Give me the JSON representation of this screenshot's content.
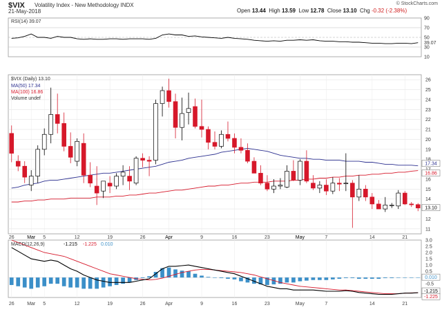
{
  "header": {
    "symbol": "$VIX",
    "name": "Volatility Index - New Methodology",
    "exchange": "INDX",
    "date": "21-May-2018",
    "brand": "© StockCharts.com",
    "open_label": "Open",
    "open": "13.44",
    "high_label": "High",
    "high": "13.59",
    "low_label": "Low",
    "low": "12.78",
    "close_label": "Close",
    "close": "13.10",
    "chg_label": "Chg",
    "chg": "-0.32 (-2.38%)"
  },
  "colors": {
    "up": "#ffffff",
    "down": "#d6182a",
    "ma50": "#2b2f8f",
    "ma100": "#d6182a",
    "macd": "#000000",
    "signal": "#d6182a",
    "hist": "#3b8fc8"
  },
  "chart_data": [
    {
      "type": "line",
      "panel": "RSI",
      "legend": "RSI(14) 39.07",
      "ylim": [
        10,
        90
      ],
      "levels": [
        70,
        50,
        30
      ],
      "ticks": [
        90,
        70,
        50,
        39.07,
        30,
        10
      ],
      "values": [
        48,
        49,
        52,
        57,
        50,
        50,
        48,
        52,
        50,
        50,
        47,
        46,
        47,
        46,
        46,
        47,
        47,
        46,
        47,
        47,
        47,
        46,
        48,
        55,
        57,
        55,
        55,
        52,
        53,
        51,
        50,
        49,
        48,
        50,
        48,
        47,
        46,
        44,
        43,
        42,
        43,
        42,
        44,
        44,
        45,
        44,
        45,
        43,
        42,
        42,
        41,
        41,
        40,
        40,
        39,
        38,
        38,
        37,
        37,
        38,
        38,
        37,
        39
      ]
    },
    {
      "type": "candlestick",
      "panel": "price",
      "legend": [
        "$VIX (Daily) 13.10",
        "MA(50) 17.34",
        "MA(100) 16.86",
        "Volume undef"
      ],
      "ylim": [
        10.5,
        26.5
      ],
      "yticks": [
        26,
        25,
        24,
        23,
        22,
        21,
        20,
        19,
        18,
        17,
        16,
        15,
        14,
        13,
        12,
        11
      ],
      "last_labels": [
        "17.34",
        "16.86",
        "13.10"
      ],
      "x_labels": [
        "26",
        "Mar",
        "5",
        "12",
        "19",
        "26",
        "Apr",
        "9",
        "16",
        "23",
        "May",
        "7",
        "14",
        "21"
      ],
      "candles": [
        [
          20.6,
          21.4,
          17.7,
          18.6
        ],
        [
          17.8,
          18.4,
          16.8,
          17.3
        ],
        [
          17.3,
          17.8,
          15.6,
          16.2
        ],
        [
          15.4,
          16.9,
          14.8,
          16.3
        ],
        [
          16.3,
          19.4,
          15.6,
          19.0
        ],
        [
          19.0,
          21.1,
          18.4,
          20.5
        ],
        [
          20.5,
          25.2,
          19.6,
          22.5
        ],
        [
          22.5,
          24.6,
          20.6,
          21.6
        ],
        [
          21.6,
          22.7,
          18.8,
          19.3
        ],
        [
          19.3,
          20.7,
          17.6,
          18.2
        ],
        [
          17.8,
          20.1,
          17.3,
          19.8
        ],
        [
          19.6,
          20.6,
          15.6,
          16.4
        ],
        [
          16.4,
          17.7,
          15.2,
          15.6
        ],
        [
          15.3,
          17.3,
          13.4,
          14.6
        ],
        [
          14.8,
          15.8,
          14.1,
          15.8
        ],
        [
          15.6,
          16.3,
          14.6,
          15.3
        ],
        [
          15.3,
          16.6,
          15.0,
          16.3
        ],
        [
          16.3,
          17.4,
          15.4,
          16.7
        ],
        [
          16.3,
          17.3,
          14.9,
          15.8
        ],
        [
          15.6,
          18.3,
          15.4,
          18.1
        ],
        [
          18.1,
          18.6,
          17.2,
          17.9
        ],
        [
          17.9,
          18.3,
          16.3,
          17.8
        ],
        [
          17.9,
          24.0,
          17.5,
          23.6
        ],
        [
          23.6,
          25.3,
          22.3,
          24.9
        ],
        [
          24.9,
          26.1,
          23.2,
          23.8
        ],
        [
          23.8,
          24.6,
          20.1,
          21.2
        ],
        [
          21.2,
          24.2,
          19.9,
          22.6
        ],
        [
          22.7,
          24.7,
          21.5,
          23.1
        ],
        [
          23.3,
          24.1,
          21.1,
          21.3
        ],
        [
          21.3,
          24.0,
          20.2,
          21.0
        ],
        [
          21.0,
          21.3,
          19.0,
          19.7
        ],
        [
          19.7,
          20.8,
          19.0,
          19.3
        ],
        [
          19.3,
          20.9,
          19.1,
          20.5
        ],
        [
          20.5,
          21.8,
          19.8,
          20.1
        ],
        [
          20.1,
          20.6,
          18.6,
          19.2
        ],
        [
          19.2,
          20.1,
          18.6,
          18.9
        ],
        [
          18.9,
          19.6,
          17.6,
          17.8
        ],
        [
          17.8,
          18.2,
          16.6,
          16.6
        ],
        [
          16.6,
          17.4,
          15.4,
          15.6
        ],
        [
          15.6,
          16.4,
          14.8,
          15.0
        ],
        [
          15.0,
          16.0,
          14.6,
          15.3
        ],
        [
          15.3,
          16.1,
          15.0,
          15.4
        ],
        [
          15.2,
          17.4,
          15.1,
          16.8
        ],
        [
          16.8,
          17.9,
          15.8,
          15.9
        ],
        [
          15.9,
          18.0,
          15.4,
          17.8
        ],
        [
          17.8,
          18.9,
          15.6,
          15.8
        ],
        [
          15.6,
          16.4,
          14.9,
          15.1
        ],
        [
          15.1,
          15.8,
          14.6,
          15.4
        ],
        [
          15.4,
          16.0,
          14.4,
          14.8
        ],
        [
          14.8,
          16.2,
          14.5,
          15.6
        ],
        [
          15.6,
          16.1,
          14.8,
          15.5
        ],
        [
          15.6,
          18.6,
          14.8,
          15.6
        ],
        [
          15.6,
          15.9,
          11.1,
          14.2
        ],
        [
          14.2,
          16.4,
          13.8,
          15.0
        ],
        [
          15.0,
          15.4,
          13.8,
          14.2
        ],
        [
          14.2,
          14.6,
          13.0,
          13.5
        ],
        [
          13.5,
          13.9,
          13.0,
          13.0
        ],
        [
          13.0,
          14.2,
          12.7,
          13.4
        ],
        [
          13.4,
          13.6,
          13.1,
          13.4
        ],
        [
          13.3,
          14.9,
          13.0,
          14.6
        ],
        [
          14.6,
          14.8,
          13.4,
          13.5
        ],
        [
          13.5,
          13.7,
          13.2,
          13.42
        ],
        [
          13.44,
          13.59,
          12.78,
          13.1
        ]
      ],
      "ma50": [
        15.1,
        15.2,
        15.4,
        15.5,
        15.6,
        15.8,
        15.9,
        15.9,
        16.0,
        16.1,
        16.2,
        16.3,
        16.4,
        16.5,
        16.6,
        16.6,
        16.7,
        16.8,
        16.9,
        17.0,
        17.1,
        17.2,
        17.3,
        17.5,
        17.7,
        17.8,
        17.9,
        18.1,
        18.2,
        18.3,
        18.4,
        18.5,
        18.7,
        18.8,
        18.9,
        19.0,
        19.1,
        19.0,
        18.9,
        18.8,
        18.6,
        18.4,
        18.3,
        18.2,
        18.1,
        18.1,
        18.0,
        18.0,
        17.9,
        17.9,
        17.9,
        17.8,
        17.8,
        17.8,
        17.7,
        17.7,
        17.6,
        17.5,
        17.5,
        17.4,
        17.4,
        17.4,
        17.34
      ],
      "ma100": [
        13.7,
        13.7,
        13.8,
        13.8,
        13.9,
        13.9,
        14.0,
        14.0,
        14.0,
        14.1,
        14.1,
        14.1,
        14.1,
        14.2,
        14.2,
        14.2,
        14.3,
        14.3,
        14.4,
        14.4,
        14.5,
        14.6,
        14.6,
        14.7,
        14.8,
        14.9,
        14.9,
        15.0,
        15.1,
        15.2,
        15.3,
        15.3,
        15.4,
        15.4,
        15.5,
        15.6,
        15.6,
        15.7,
        15.7,
        15.7,
        15.8,
        15.8,
        15.8,
        15.9,
        15.9,
        16.0,
        16.0,
        16.1,
        16.1,
        16.2,
        16.2,
        16.3,
        16.3,
        16.4,
        16.4,
        16.5,
        16.5,
        16.6,
        16.6,
        16.7,
        16.7,
        16.8,
        16.86
      ]
    },
    {
      "type": "line",
      "panel": "MACD",
      "legend_prefix": "MACD(12,26,9)",
      "legend_macd": "-1.215",
      "legend_signal": "-1.225",
      "legend_hist": "0.010",
      "ylim": [
        -1.6,
        3.0
      ],
      "yticks": [
        3.0,
        2.5,
        2.0,
        1.5,
        1.0,
        0.5,
        0.0,
        -0.5,
        -1.0,
        -1.5
      ],
      "last_labels": [
        "0.010",
        "-1.215",
        "-1.225"
      ],
      "macd": [
        2.4,
        2.1,
        1.8,
        1.5,
        1.4,
        1.3,
        1.4,
        1.3,
        1.0,
        0.7,
        0.5,
        0.2,
        0.0,
        -0.2,
        -0.3,
        -0.4,
        -0.4,
        -0.4,
        -0.4,
        -0.3,
        -0.2,
        -0.1,
        0.3,
        0.7,
        0.9,
        0.9,
        0.95,
        1.0,
        0.9,
        0.8,
        0.7,
        0.6,
        0.5,
        0.4,
        0.3,
        0.1,
        -0.1,
        -0.3,
        -0.5,
        -0.7,
        -0.8,
        -0.9,
        -0.9,
        -1.0,
        -1.0,
        -1.0,
        -1.0,
        -1.05,
        -1.1,
        -1.1,
        -1.1,
        -1.05,
        -1.1,
        -1.2,
        -1.25,
        -1.3,
        -1.35,
        -1.35,
        -1.35,
        -1.3,
        -1.25,
        -1.25,
        -1.215
      ],
      "signal": [
        3.0,
        2.8,
        2.6,
        2.4,
        2.2,
        2.0,
        1.9,
        1.8,
        1.7,
        1.5,
        1.3,
        1.1,
        0.9,
        0.7,
        0.5,
        0.3,
        0.2,
        0.1,
        0.0,
        -0.1,
        -0.15,
        -0.2,
        -0.15,
        -0.05,
        0.1,
        0.25,
        0.4,
        0.5,
        0.6,
        0.65,
        0.65,
        0.6,
        0.55,
        0.5,
        0.45,
        0.4,
        0.3,
        0.2,
        0.05,
        -0.1,
        -0.25,
        -0.4,
        -0.5,
        -0.6,
        -0.7,
        -0.75,
        -0.8,
        -0.85,
        -0.9,
        -0.95,
        -1.0,
        -1.0,
        -1.05,
        -1.1,
        -1.15,
        -1.2,
        -1.25,
        -1.3,
        -1.3,
        -1.3,
        -1.25,
        -1.23,
        -1.225
      ],
      "hist": [
        -0.6,
        -0.7,
        -0.8,
        -0.9,
        -0.8,
        -0.7,
        -0.5,
        -0.5,
        -0.7,
        -0.8,
        -0.8,
        -0.9,
        -0.9,
        -0.9,
        -0.8,
        -0.7,
        -0.6,
        -0.5,
        -0.4,
        -0.2,
        -0.05,
        0.1,
        0.45,
        0.75,
        0.8,
        0.65,
        0.55,
        0.5,
        0.3,
        0.15,
        0.05,
        0.0,
        -0.05,
        -0.1,
        -0.15,
        -0.3,
        -0.4,
        -0.5,
        -0.55,
        -0.6,
        -0.55,
        -0.5,
        -0.4,
        -0.4,
        -0.3,
        -0.25,
        -0.2,
        -0.2,
        -0.2,
        -0.15,
        -0.1,
        -0.05,
        -0.05,
        -0.1,
        -0.1,
        -0.1,
        -0.1,
        -0.05,
        -0.05,
        0.0,
        0.0,
        -0.02,
        0.01
      ]
    }
  ]
}
